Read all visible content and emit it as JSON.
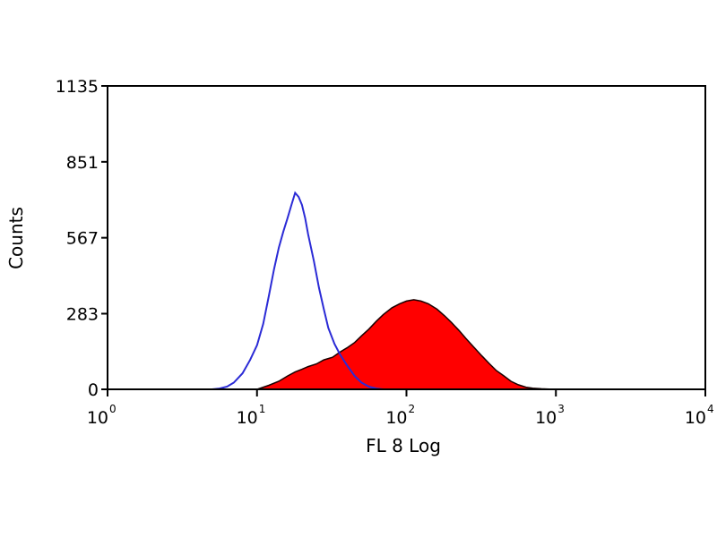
{
  "chart_data": {
    "type": "area",
    "xlabel": "FL 8 Log",
    "ylabel": "Counts",
    "x_scale": "log",
    "xlim": [
      1,
      10000
    ],
    "ylim": [
      0,
      1135
    ],
    "x_ticks": [
      {
        "base": "10",
        "exp": "0"
      },
      {
        "base": "10",
        "exp": "1"
      },
      {
        "base": "10",
        "exp": "2"
      },
      {
        "base": "10",
        "exp": "3"
      },
      {
        "base": "10",
        "exp": "4"
      }
    ],
    "y_ticks": [
      "0",
      "283",
      "567",
      "851",
      "1135"
    ],
    "grid": false,
    "series": [
      {
        "style": "filled",
        "color": "#ff0000",
        "outline_color": "#1a0000",
        "x": [
          10,
          12,
          14,
          16,
          18,
          20,
          22,
          25,
          28,
          32,
          36,
          40,
          45,
          50,
          56,
          63,
          70,
          80,
          90,
          100,
          112,
          125,
          140,
          160,
          180,
          200,
          225,
          250,
          280,
          320,
          360,
          400,
          450,
          500,
          560,
          630,
          700,
          800,
          900,
          1000
        ],
        "y": [
          0,
          15,
          30,
          50,
          65,
          75,
          85,
          95,
          110,
          120,
          140,
          155,
          175,
          200,
          225,
          255,
          280,
          305,
          320,
          330,
          335,
          330,
          320,
          300,
          275,
          250,
          220,
          190,
          160,
          125,
          95,
          70,
          50,
          30,
          17,
          8,
          4,
          2,
          1,
          0
        ]
      },
      {
        "style": "line",
        "color": "#2b2bd6",
        "x": [
          5,
          5.6,
          6.3,
          7,
          8,
          9,
          10,
          11,
          12,
          13,
          14,
          15,
          16,
          17,
          18,
          19,
          20,
          21,
          22,
          24,
          26,
          28,
          30,
          33,
          36,
          40,
          45,
          50,
          56,
          63,
          70
        ],
        "y": [
          0,
          3,
          10,
          25,
          60,
          110,
          165,
          245,
          350,
          450,
          530,
          590,
          640,
          690,
          735,
          720,
          690,
          640,
          580,
          480,
          380,
          300,
          230,
          170,
          130,
          90,
          50,
          25,
          10,
          3,
          0
        ]
      }
    ]
  }
}
